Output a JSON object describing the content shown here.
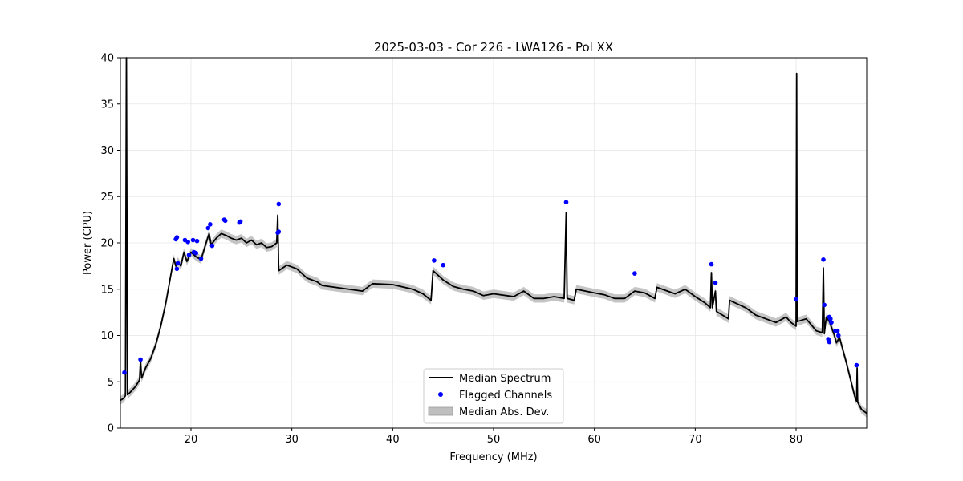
{
  "chart_data": {
    "type": "line",
    "title": "2025-03-03 - Cor 226 - LWA126 - Pol XX",
    "xlabel": "Frequency (MHz)",
    "ylabel": "Power (CPU)",
    "xlim": [
      13,
      87
    ],
    "ylim": [
      0,
      40
    ],
    "xticks": [
      20,
      30,
      40,
      50,
      60,
      70,
      80
    ],
    "yticks": [
      0,
      5,
      10,
      15,
      20,
      25,
      30,
      35,
      40
    ],
    "grid": true,
    "legend_position": "lower-center",
    "colors": {
      "median": "#000000",
      "flagged": "#0000ff",
      "mad": "#bfbfbf"
    },
    "series": [
      {
        "name": "Median Spectrum",
        "kind": "line",
        "points": [
          [
            13.0,
            3.0
          ],
          [
            13.3,
            3.2
          ],
          [
            13.5,
            3.5
          ],
          [
            13.6,
            40.0
          ],
          [
            13.7,
            3.6
          ],
          [
            14.0,
            3.9
          ],
          [
            14.5,
            4.5
          ],
          [
            14.9,
            5.2
          ],
          [
            15.0,
            7.4
          ],
          [
            15.1,
            5.4
          ],
          [
            15.5,
            6.5
          ],
          [
            16.0,
            7.5
          ],
          [
            16.5,
            9.0
          ],
          [
            17.0,
            11.0
          ],
          [
            17.5,
            13.5
          ],
          [
            18.0,
            16.5
          ],
          [
            18.3,
            18.3
          ],
          [
            18.5,
            17.5
          ],
          [
            18.7,
            18.0
          ],
          [
            19.0,
            17.5
          ],
          [
            19.3,
            19.0
          ],
          [
            19.6,
            18.0
          ],
          [
            20.0,
            19.0
          ],
          [
            20.5,
            18.5
          ],
          [
            21.0,
            18.2
          ],
          [
            21.5,
            20.0
          ],
          [
            21.8,
            21.0
          ],
          [
            22.0,
            19.8
          ],
          [
            22.5,
            20.5
          ],
          [
            23.0,
            21.0
          ],
          [
            23.5,
            20.8
          ],
          [
            24.0,
            20.5
          ],
          [
            24.5,
            20.3
          ],
          [
            25.0,
            20.5
          ],
          [
            25.5,
            20.0
          ],
          [
            26.0,
            20.3
          ],
          [
            26.5,
            19.8
          ],
          [
            27.0,
            20.0
          ],
          [
            27.5,
            19.5
          ],
          [
            28.0,
            19.6
          ],
          [
            28.5,
            20.0
          ],
          [
            28.6,
            23.0
          ],
          [
            28.7,
            17.0
          ],
          [
            29.5,
            17.6
          ],
          [
            30.5,
            17.2
          ],
          [
            31.5,
            16.2
          ],
          [
            32.5,
            15.8
          ],
          [
            33.0,
            15.4
          ],
          [
            35.0,
            15.1
          ],
          [
            37.0,
            14.8
          ],
          [
            38.0,
            15.6
          ],
          [
            40.0,
            15.5
          ],
          [
            42.0,
            15.0
          ],
          [
            43.0,
            14.5
          ],
          [
            43.8,
            13.8
          ],
          [
            44.0,
            17.0
          ],
          [
            45.0,
            16.0
          ],
          [
            46.0,
            15.3
          ],
          [
            47.0,
            15.0
          ],
          [
            48.0,
            14.8
          ],
          [
            49.0,
            14.3
          ],
          [
            50.0,
            14.5
          ],
          [
            52.0,
            14.2
          ],
          [
            53.0,
            14.8
          ],
          [
            54.0,
            14.0
          ],
          [
            55.0,
            14.0
          ],
          [
            56.0,
            14.2
          ],
          [
            57.0,
            14.0
          ],
          [
            57.2,
            23.3
          ],
          [
            57.3,
            14.0
          ],
          [
            58.0,
            13.8
          ],
          [
            58.2,
            15.0
          ],
          [
            60.0,
            14.6
          ],
          [
            61.0,
            14.4
          ],
          [
            62.0,
            14.0
          ],
          [
            63.0,
            14.0
          ],
          [
            64.0,
            14.8
          ],
          [
            65.0,
            14.6
          ],
          [
            66.0,
            14.0
          ],
          [
            66.2,
            15.2
          ],
          [
            68.0,
            14.5
          ],
          [
            69.0,
            15.0
          ],
          [
            70.0,
            14.2
          ],
          [
            71.0,
            13.5
          ],
          [
            71.5,
            13.0
          ],
          [
            71.6,
            16.8
          ],
          [
            71.7,
            13.0
          ],
          [
            72.0,
            14.8
          ],
          [
            72.1,
            12.6
          ],
          [
            73.0,
            12.0
          ],
          [
            73.3,
            11.8
          ],
          [
            73.4,
            13.8
          ],
          [
            75.0,
            13.0
          ],
          [
            76.0,
            12.2
          ],
          [
            77.0,
            11.8
          ],
          [
            78.0,
            11.4
          ],
          [
            79.0,
            12.0
          ],
          [
            79.5,
            11.4
          ],
          [
            80.0,
            11.0
          ],
          [
            80.05,
            38.3
          ],
          [
            80.1,
            11.5
          ],
          [
            81.0,
            11.8
          ],
          [
            82.0,
            10.5
          ],
          [
            82.6,
            10.3
          ],
          [
            82.7,
            17.3
          ],
          [
            82.8,
            10.2
          ],
          [
            83.0,
            12.0
          ],
          [
            83.3,
            11.5
          ],
          [
            83.8,
            10.0
          ],
          [
            84.0,
            9.2
          ],
          [
            84.3,
            9.8
          ],
          [
            85.0,
            7.0
          ],
          [
            85.8,
            3.5
          ],
          [
            86.0,
            2.9
          ],
          [
            86.05,
            6.5
          ],
          [
            86.1,
            2.8
          ],
          [
            86.5,
            2.0
          ],
          [
            87.0,
            1.6
          ]
        ]
      },
      {
        "name": "Flagged Channels",
        "kind": "scatter",
        "points": [
          [
            13.4,
            6.0
          ],
          [
            15.0,
            7.4
          ],
          [
            18.5,
            20.4
          ],
          [
            18.6,
            20.6
          ],
          [
            18.7,
            17.8
          ],
          [
            18.6,
            17.2
          ],
          [
            19.4,
            20.3
          ],
          [
            19.7,
            20.1
          ],
          [
            20.2,
            20.3
          ],
          [
            20.6,
            20.2
          ],
          [
            20.3,
            19.0
          ],
          [
            20.5,
            18.9
          ],
          [
            19.8,
            18.7
          ],
          [
            21.0,
            18.3
          ],
          [
            21.7,
            21.6
          ],
          [
            21.9,
            22.0
          ],
          [
            22.1,
            19.7
          ],
          [
            23.3,
            22.5
          ],
          [
            23.4,
            22.4
          ],
          [
            24.8,
            22.2
          ],
          [
            24.9,
            22.3
          ],
          [
            28.6,
            21.1
          ],
          [
            28.7,
            21.2
          ],
          [
            28.7,
            24.2
          ],
          [
            44.1,
            18.1
          ],
          [
            45.0,
            17.6
          ],
          [
            57.2,
            24.4
          ],
          [
            64.0,
            16.7
          ],
          [
            71.6,
            17.7
          ],
          [
            72.0,
            15.7
          ],
          [
            80.0,
            13.9
          ],
          [
            82.7,
            18.2
          ],
          [
            82.8,
            13.3
          ],
          [
            83.3,
            12.0
          ],
          [
            83.4,
            11.8
          ],
          [
            83.5,
            11.4
          ],
          [
            83.2,
            9.6
          ],
          [
            83.3,
            9.3
          ],
          [
            83.9,
            10.5
          ],
          [
            84.1,
            10.5
          ],
          [
            84.2,
            10.0
          ],
          [
            86.0,
            6.8
          ]
        ]
      },
      {
        "name": "Median Abs. Dev.",
        "kind": "band",
        "half_width": 0.45
      }
    ]
  }
}
